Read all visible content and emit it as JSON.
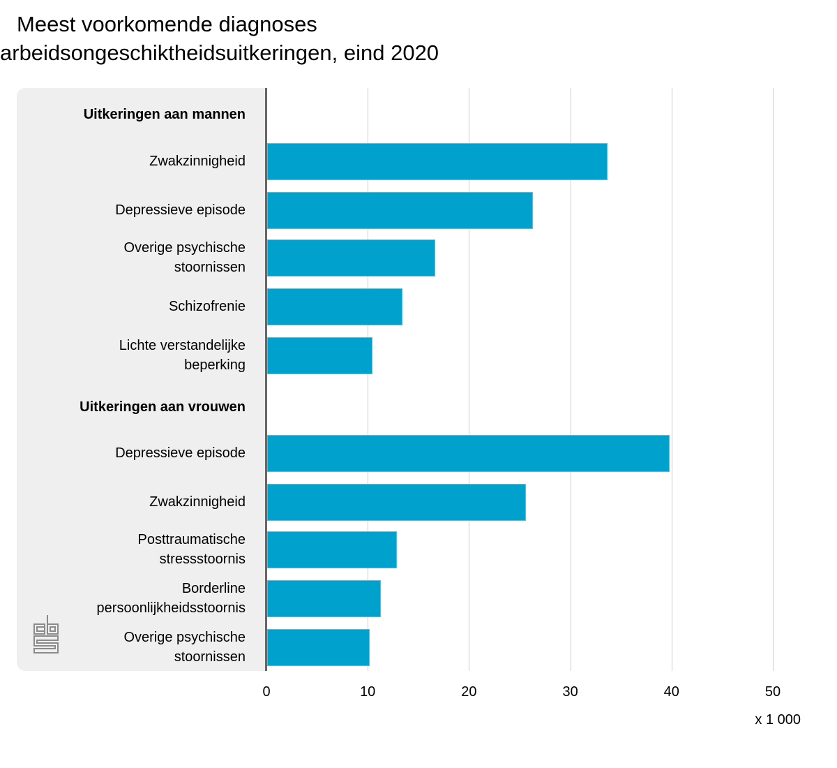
{
  "title": {
    "line1": "Meest voorkomende diagnoses",
    "line2": "arbeidsongeschiktheidsuitkeringen, eind 2020"
  },
  "axis": {
    "ticks": [
      "0",
      "10",
      "20",
      "30",
      "40",
      "50"
    ],
    "unit": "x 1 000"
  },
  "groups": [
    {
      "label": "Uitkeringen aan mannen"
    },
    {
      "label": "Uitkeringen aan vrouwen"
    }
  ],
  "rows": [
    {
      "label1": "Zwakzinnigheid",
      "label2": "",
      "value": 33.7
    },
    {
      "label1": "Depressieve episode",
      "label2": "",
      "value": 26.3
    },
    {
      "label1": "Overige psychische",
      "label2": "stoornissen",
      "value": 16.7
    },
    {
      "label1": "Schizofrenie",
      "label2": "",
      "value": 13.4
    },
    {
      "label1": "Lichte verstandelijke",
      "label2": "beperking",
      "value": 10.5
    },
    {
      "label1": "Depressieve episode",
      "label2": "",
      "value": 39.8
    },
    {
      "label1": "Zwakzinnigheid",
      "label2": "",
      "value": 25.6
    },
    {
      "label1": "Posttraumatische",
      "label2": "stressstoornis",
      "value": 12.9
    },
    {
      "label1": "Borderline",
      "label2": "persoonlijkheidsstoornis",
      "value": 11.3
    },
    {
      "label1": "Overige psychische",
      "label2": "stoornissen",
      "value": 10.2
    }
  ],
  "colors": {
    "bar": "#00a1cd",
    "panel": "#efefef",
    "axis": "#666666",
    "grid": "#cccccc"
  },
  "chart_data": {
    "type": "bar",
    "orientation": "horizontal",
    "title": "Meest voorkomende diagnoses arbeidsongeschiktheidsuitkeringen, eind 2020",
    "xlabel": "x 1 000",
    "ylabel": "",
    "xlim": [
      0,
      50
    ],
    "xticks": [
      0,
      10,
      20,
      30,
      40,
      50
    ],
    "grid": true,
    "series": [
      {
        "name": "Uitkeringen aan mannen",
        "categories": [
          "Zwakzinnigheid",
          "Depressieve episode",
          "Overige psychische stoornissen",
          "Schizofrenie",
          "Lichte verstandelijke beperking"
        ],
        "values": [
          33.7,
          26.3,
          16.7,
          13.4,
          10.5
        ]
      },
      {
        "name": "Uitkeringen aan vrouwen",
        "categories": [
          "Depressieve episode",
          "Zwakzinnigheid",
          "Posttraumatische stressstoornis",
          "Borderline persoonlijkheidsstoornis",
          "Overige psychische stoornissen"
        ],
        "values": [
          39.8,
          25.6,
          12.9,
          11.3,
          10.2
        ]
      }
    ]
  }
}
